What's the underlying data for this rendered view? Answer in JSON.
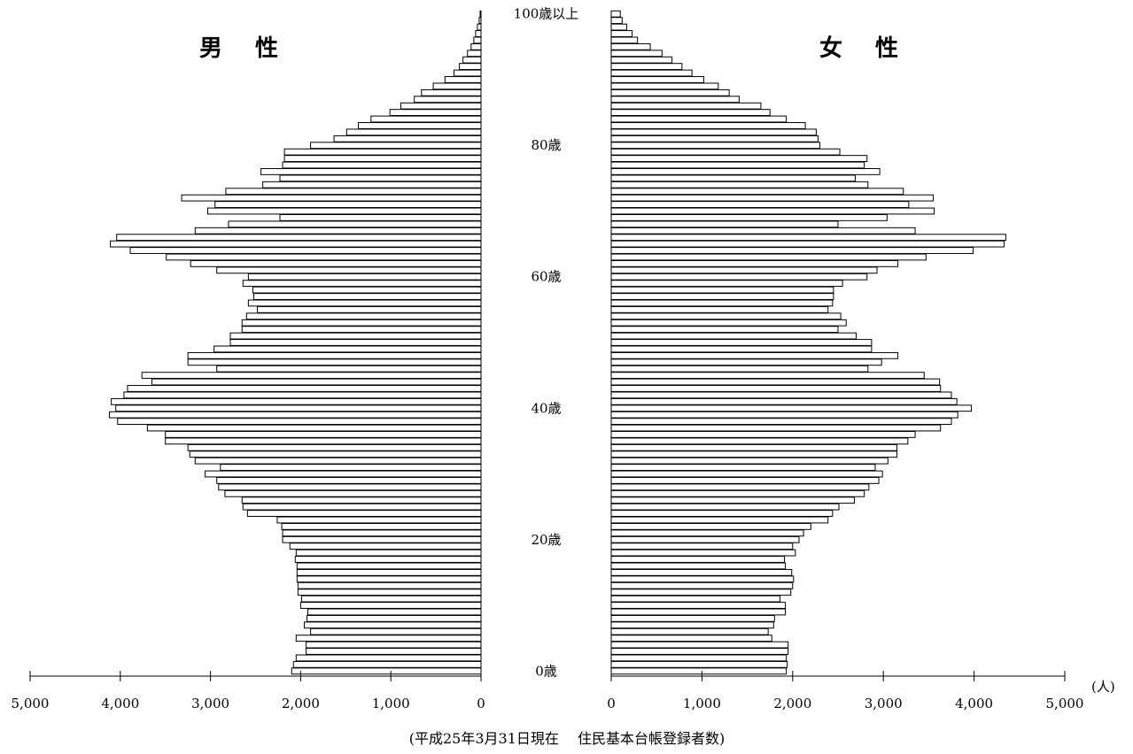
{
  "chart_data": {
    "type": "bar",
    "orientation": "horizontal-population-pyramid",
    "title_male": "男 性",
    "title_female": "女 性",
    "unit": "(人)",
    "source": "(平成25年3月31日現在　 住民基本台帳登録者数)",
    "axis_max": 5000,
    "male_ticks": [
      "5,000",
      "4,000",
      "3,000",
      "2,000",
      "1,000",
      "0"
    ],
    "female_ticks": [
      "0",
      "1,000",
      "2,000",
      "3,000",
      "4,000",
      "5,000"
    ],
    "tick_values": [
      5000,
      4000,
      3000,
      2000,
      1000,
      0
    ],
    "age_labels": [
      {
        "age": 0,
        "label": "0歳"
      },
      {
        "age": 20,
        "label": "20歳"
      },
      {
        "age": 40,
        "label": "40歳"
      },
      {
        "age": 60,
        "label": "60歳"
      },
      {
        "age": 80,
        "label": "80歳"
      },
      {
        "age": 100,
        "label": "100歳以上"
      }
    ],
    "ages": [
      "0",
      "1",
      "2",
      "3",
      "4",
      "5",
      "6",
      "7",
      "8",
      "9",
      "10",
      "11",
      "12",
      "13",
      "14",
      "15",
      "16",
      "17",
      "18",
      "19",
      "20",
      "21",
      "22",
      "23",
      "24",
      "25",
      "26",
      "27",
      "28",
      "29",
      "30",
      "31",
      "32",
      "33",
      "34",
      "35",
      "36",
      "37",
      "38",
      "39",
      "40",
      "41",
      "42",
      "43",
      "44",
      "45",
      "46",
      "47",
      "48",
      "49",
      "50",
      "51",
      "52",
      "53",
      "54",
      "55",
      "56",
      "57",
      "58",
      "59",
      "60",
      "61",
      "62",
      "63",
      "64",
      "65",
      "66",
      "67",
      "68",
      "69",
      "70",
      "71",
      "72",
      "73",
      "74",
      "75",
      "76",
      "77",
      "78",
      "79",
      "80",
      "81",
      "82",
      "83",
      "84",
      "85",
      "86",
      "87",
      "88",
      "89",
      "90",
      "91",
      "92",
      "93",
      "94",
      "95",
      "96",
      "97",
      "98",
      "99",
      "100歳以上"
    ],
    "male": [
      2100,
      2080,
      2050,
      1940,
      1940,
      2050,
      1890,
      1960,
      1930,
      1920,
      2000,
      1990,
      2030,
      2030,
      2040,
      2040,
      2040,
      2060,
      2050,
      2120,
      2200,
      2200,
      2210,
      2260,
      2590,
      2640,
      2650,
      2840,
      2910,
      2930,
      3060,
      2890,
      3170,
      3230,
      3250,
      3500,
      3500,
      3700,
      4030,
      4120,
      4050,
      4100,
      3960,
      3920,
      3650,
      3760,
      2930,
      3250,
      3250,
      2960,
      2780,
      2780,
      2650,
      2650,
      2600,
      2480,
      2580,
      2520,
      2530,
      2640,
      2580,
      2930,
      3220,
      3490,
      3890,
      4110,
      4040,
      3170,
      2800,
      2230,
      3030,
      2950,
      3320,
      2830,
      2420,
      2230,
      2440,
      2200,
      2180,
      2180,
      1890,
      1630,
      1490,
      1360,
      1220,
      1010,
      890,
      740,
      660,
      530,
      400,
      300,
      240,
      200,
      150,
      110,
      80,
      60,
      40,
      20,
      10
    ],
    "female": [
      1930,
      1940,
      1930,
      1950,
      1950,
      1770,
      1730,
      1790,
      1800,
      1920,
      1920,
      1860,
      1980,
      2000,
      2010,
      1990,
      1920,
      1910,
      2030,
      2000,
      2070,
      2120,
      2200,
      2390,
      2440,
      2510,
      2680,
      2790,
      2840,
      2950,
      2990,
      2910,
      3050,
      3150,
      3150,
      3270,
      3350,
      3630,
      3750,
      3820,
      3970,
      3810,
      3750,
      3630,
      3620,
      3450,
      2830,
      2980,
      3160,
      2870,
      2870,
      2700,
      2500,
      2590,
      2530,
      2390,
      2440,
      2450,
      2450,
      2550,
      2820,
      2930,
      3160,
      3470,
      3990,
      4330,
      4350,
      3350,
      2500,
      3040,
      3560,
      3280,
      3550,
      3220,
      2830,
      2690,
      2960,
      2790,
      2820,
      2520,
      2300,
      2280,
      2260,
      2140,
      1930,
      1750,
      1650,
      1410,
      1300,
      1180,
      1020,
      890,
      780,
      670,
      560,
      430,
      290,
      230,
      170,
      120,
      100
    ]
  }
}
